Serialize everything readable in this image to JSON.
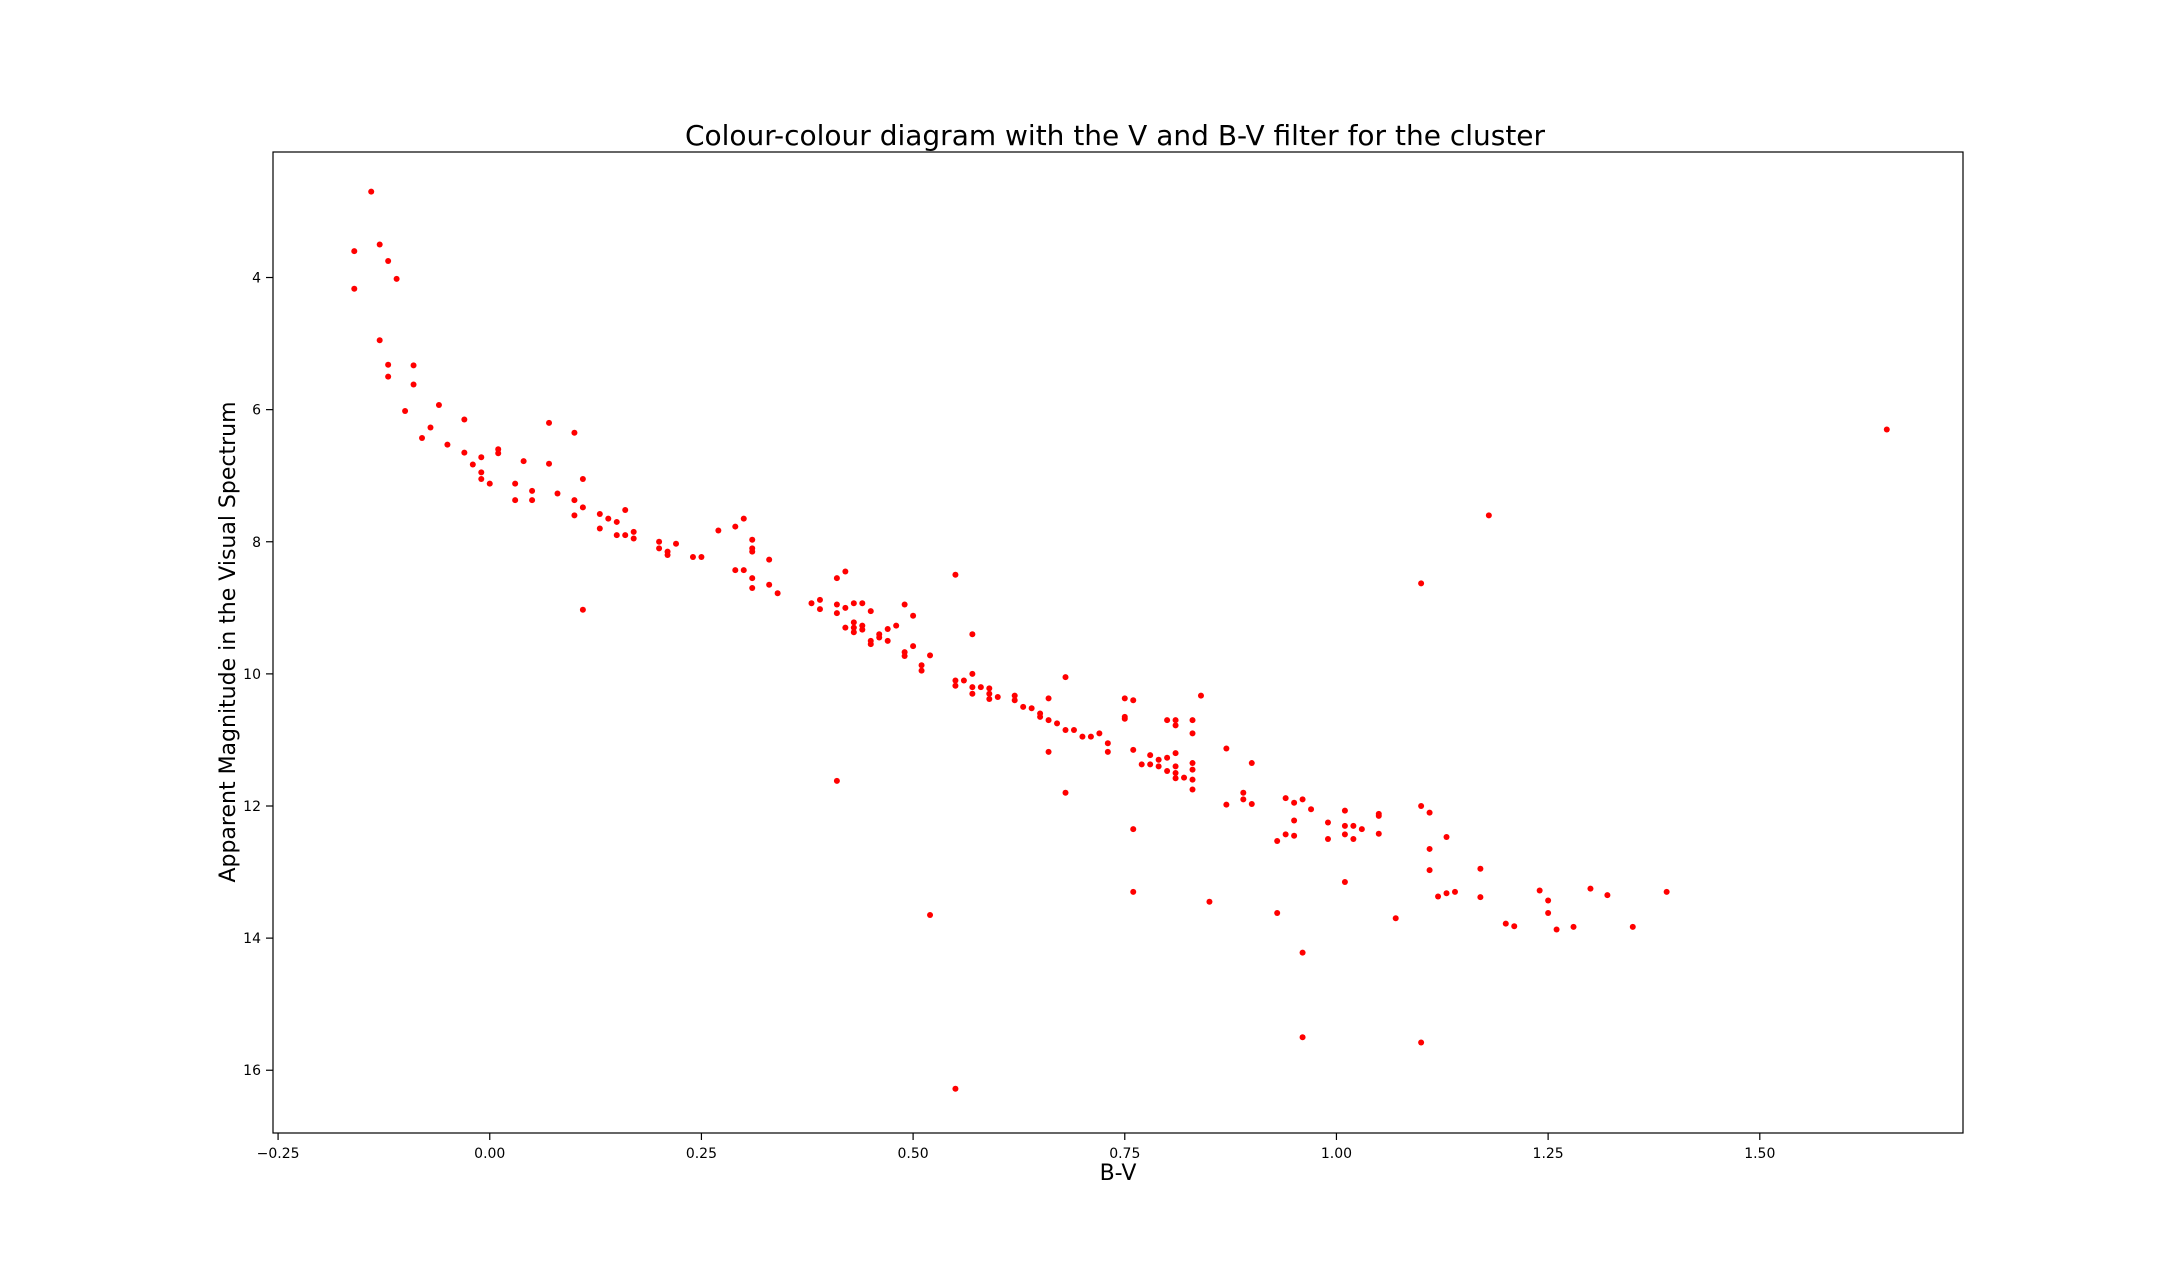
{
  "chart_data": {
    "type": "scatter",
    "title": "Colour-colour diagram with the V and B-V filter for the cluster",
    "xlabel": "B-V",
    "ylabel": "Apparent Magnitude in the Visual Spectrum",
    "xlim": [
      -0.256,
      1.74
    ],
    "ylim": [
      16.95,
      2.1
    ],
    "y_inverted": true,
    "grid": false,
    "marker_color": "#ff0000",
    "xticks": [
      -0.25,
      0.0,
      0.25,
      0.5,
      0.75,
      1.0,
      1.25,
      1.5
    ],
    "xtick_labels": [
      "−0.25",
      "0.00",
      "0.25",
      "0.50",
      "0.75",
      "1.00",
      "1.25",
      "1.50"
    ],
    "yticks": [
      4,
      6,
      8,
      10,
      12,
      14,
      16
    ],
    "ytick_labels": [
      "4",
      "6",
      "8",
      "10",
      "12",
      "14",
      "16"
    ],
    "points": [
      [
        -0.14,
        2.7
      ],
      [
        -0.16,
        3.6
      ],
      [
        -0.13,
        3.5
      ],
      [
        -0.12,
        3.75
      ],
      [
        -0.11,
        4.02
      ],
      [
        -0.16,
        4.17
      ],
      [
        -0.13,
        4.95
      ],
      [
        -0.12,
        5.32
      ],
      [
        -0.12,
        5.5
      ],
      [
        -0.09,
        5.33
      ],
      [
        -0.09,
        5.62
      ],
      [
        -0.1,
        6.02
      ],
      [
        -0.06,
        5.93
      ],
      [
        -0.07,
        6.27
      ],
      [
        -0.08,
        6.43
      ],
      [
        -0.05,
        6.53
      ],
      [
        -0.03,
        6.15
      ],
      [
        -0.03,
        6.65
      ],
      [
        -0.02,
        6.83
      ],
      [
        -0.01,
        6.72
      ],
      [
        0.01,
        6.6
      ],
      [
        0.01,
        6.66
      ],
      [
        -0.01,
        6.95
      ],
      [
        -0.01,
        7.05
      ],
      [
        0.0,
        7.12
      ],
      [
        0.03,
        7.12
      ],
      [
        0.04,
        6.78
      ],
      [
        0.05,
        7.23
      ],
      [
        0.07,
        6.2
      ],
      [
        0.07,
        6.82
      ],
      [
        0.03,
        7.37
      ],
      [
        0.05,
        7.37
      ],
      [
        0.08,
        7.27
      ],
      [
        0.1,
        6.35
      ],
      [
        0.1,
        7.37
      ],
      [
        0.11,
        7.05
      ],
      [
        0.11,
        7.48
      ],
      [
        0.1,
        7.6
      ],
      [
        0.13,
        7.58
      ],
      [
        0.14,
        7.65
      ],
      [
        0.15,
        7.7
      ],
      [
        0.16,
        7.52
      ],
      [
        0.13,
        7.8
      ],
      [
        0.15,
        7.9
      ],
      [
        0.16,
        7.9
      ],
      [
        0.17,
        7.85
      ],
      [
        0.17,
        7.95
      ],
      [
        0.11,
        9.03
      ],
      [
        0.2,
        8.0
      ],
      [
        0.2,
        8.1
      ],
      [
        0.21,
        8.15
      ],
      [
        0.21,
        8.2
      ],
      [
        0.22,
        8.03
      ],
      [
        0.24,
        8.23
      ],
      [
        0.25,
        8.23
      ],
      [
        0.27,
        7.83
      ],
      [
        0.29,
        7.77
      ],
      [
        0.3,
        7.65
      ],
      [
        0.31,
        7.97
      ],
      [
        0.31,
        8.1
      ],
      [
        0.31,
        8.15
      ],
      [
        0.33,
        8.27
      ],
      [
        0.29,
        8.43
      ],
      [
        0.3,
        8.43
      ],
      [
        0.31,
        8.55
      ],
      [
        0.31,
        8.7
      ],
      [
        0.33,
        8.65
      ],
      [
        0.34,
        8.78
      ],
      [
        0.38,
        8.93
      ],
      [
        0.39,
        8.88
      ],
      [
        0.39,
        9.02
      ],
      [
        0.41,
        8.55
      ],
      [
        0.42,
        8.45
      ],
      [
        0.41,
        8.95
      ],
      [
        0.41,
        9.08
      ],
      [
        0.42,
        9.0
      ],
      [
        0.43,
        8.93
      ],
      [
        0.44,
        8.93
      ],
      [
        0.45,
        9.05
      ],
      [
        0.43,
        9.22
      ],
      [
        0.43,
        9.3
      ],
      [
        0.44,
        9.27
      ],
      [
        0.44,
        9.33
      ],
      [
        0.42,
        9.3
      ],
      [
        0.43,
        9.37
      ],
      [
        0.45,
        9.5
      ],
      [
        0.45,
        9.55
      ],
      [
        0.46,
        9.4
      ],
      [
        0.46,
        9.45
      ],
      [
        0.47,
        9.32
      ],
      [
        0.47,
        9.5
      ],
      [
        0.48,
        9.27
      ],
      [
        0.49,
        8.95
      ],
      [
        0.5,
        9.12
      ],
      [
        0.49,
        9.67
      ],
      [
        0.49,
        9.73
      ],
      [
        0.5,
        9.58
      ],
      [
        0.51,
        9.87
      ],
      [
        0.51,
        9.95
      ],
      [
        0.52,
        9.72
      ],
      [
        0.55,
        8.5
      ],
      [
        0.57,
        9.4
      ],
      [
        0.55,
        10.1
      ],
      [
        0.55,
        10.18
      ],
      [
        0.56,
        10.1
      ],
      [
        0.57,
        10.0
      ],
      [
        0.57,
        10.2
      ],
      [
        0.57,
        10.3
      ],
      [
        0.58,
        10.2
      ],
      [
        0.59,
        10.22
      ],
      [
        0.59,
        10.3
      ],
      [
        0.59,
        10.38
      ],
      [
        0.6,
        10.35
      ],
      [
        0.62,
        10.33
      ],
      [
        0.62,
        10.4
      ],
      [
        0.63,
        10.5
      ],
      [
        0.64,
        10.52
      ],
      [
        0.65,
        10.6
      ],
      [
        0.65,
        10.65
      ],
      [
        0.66,
        10.37
      ],
      [
        0.66,
        10.7
      ],
      [
        0.67,
        10.75
      ],
      [
        0.68,
        10.05
      ],
      [
        0.68,
        10.85
      ],
      [
        0.69,
        10.85
      ],
      [
        0.7,
        10.95
      ],
      [
        0.71,
        10.95
      ],
      [
        0.72,
        10.9
      ],
      [
        0.73,
        11.05
      ],
      [
        0.73,
        11.18
      ],
      [
        0.66,
        11.18
      ],
      [
        0.68,
        11.8
      ],
      [
        0.75,
        10.37
      ],
      [
        0.75,
        10.65
      ],
      [
        0.75,
        10.68
      ],
      [
        0.76,
        10.4
      ],
      [
        0.76,
        11.15
      ],
      [
        0.77,
        11.37
      ],
      [
        0.78,
        11.23
      ],
      [
        0.78,
        11.37
      ],
      [
        0.79,
        11.3
      ],
      [
        0.79,
        11.4
      ],
      [
        0.8,
        10.7
      ],
      [
        0.8,
        11.27
      ],
      [
        0.8,
        11.47
      ],
      [
        0.81,
        10.7
      ],
      [
        0.81,
        10.78
      ],
      [
        0.81,
        11.2
      ],
      [
        0.81,
        11.4
      ],
      [
        0.81,
        11.5
      ],
      [
        0.81,
        11.58
      ],
      [
        0.82,
        11.57
      ],
      [
        0.83,
        10.7
      ],
      [
        0.83,
        10.9
      ],
      [
        0.83,
        11.35
      ],
      [
        0.83,
        11.45
      ],
      [
        0.83,
        11.6
      ],
      [
        0.83,
        11.75
      ],
      [
        0.84,
        10.33
      ],
      [
        0.87,
        11.13
      ],
      [
        0.87,
        11.98
      ],
      [
        0.89,
        11.8
      ],
      [
        0.89,
        11.9
      ],
      [
        0.9,
        11.35
      ],
      [
        0.9,
        11.97
      ],
      [
        0.93,
        12.53
      ],
      [
        0.94,
        11.88
      ],
      [
        0.94,
        12.43
      ],
      [
        0.95,
        11.95
      ],
      [
        0.95,
        12.22
      ],
      [
        0.95,
        12.45
      ],
      [
        0.96,
        11.9
      ],
      [
        0.97,
        12.05
      ],
      [
        0.99,
        12.25
      ],
      [
        0.99,
        12.5
      ],
      [
        1.01,
        12.07
      ],
      [
        1.01,
        12.3
      ],
      [
        1.01,
        12.43
      ],
      [
        1.02,
        12.3
      ],
      [
        1.02,
        12.5
      ],
      [
        1.03,
        12.35
      ],
      [
        1.05,
        12.12
      ],
      [
        1.05,
        12.15
      ],
      [
        1.05,
        12.42
      ],
      [
        1.01,
        13.15
      ],
      [
        0.76,
        12.35
      ],
      [
        0.76,
        13.3
      ],
      [
        0.85,
        13.45
      ],
      [
        0.93,
        13.62
      ],
      [
        0.96,
        14.22
      ],
      [
        0.96,
        15.5
      ],
      [
        1.07,
        13.7
      ],
      [
        1.1,
        8.63
      ],
      [
        1.1,
        12.0
      ],
      [
        1.11,
        12.1
      ],
      [
        1.11,
        12.65
      ],
      [
        1.13,
        12.47
      ],
      [
        1.11,
        12.97
      ],
      [
        1.12,
        13.37
      ],
      [
        1.13,
        13.32
      ],
      [
        1.14,
        13.3
      ],
      [
        1.17,
        12.95
      ],
      [
        1.17,
        13.38
      ],
      [
        1.18,
        7.6
      ],
      [
        1.2,
        13.78
      ],
      [
        1.21,
        13.82
      ],
      [
        1.24,
        13.28
      ],
      [
        1.25,
        13.43
      ],
      [
        1.25,
        13.62
      ],
      [
        1.26,
        13.87
      ],
      [
        1.28,
        13.83
      ],
      [
        1.3,
        13.25
      ],
      [
        1.32,
        13.35
      ],
      [
        1.35,
        13.83
      ],
      [
        1.39,
        13.3
      ],
      [
        1.1,
        15.58
      ],
      [
        1.65,
        6.3
      ],
      [
        0.41,
        11.62
      ],
      [
        0.52,
        13.65
      ],
      [
        0.55,
        16.28
      ]
    ]
  }
}
